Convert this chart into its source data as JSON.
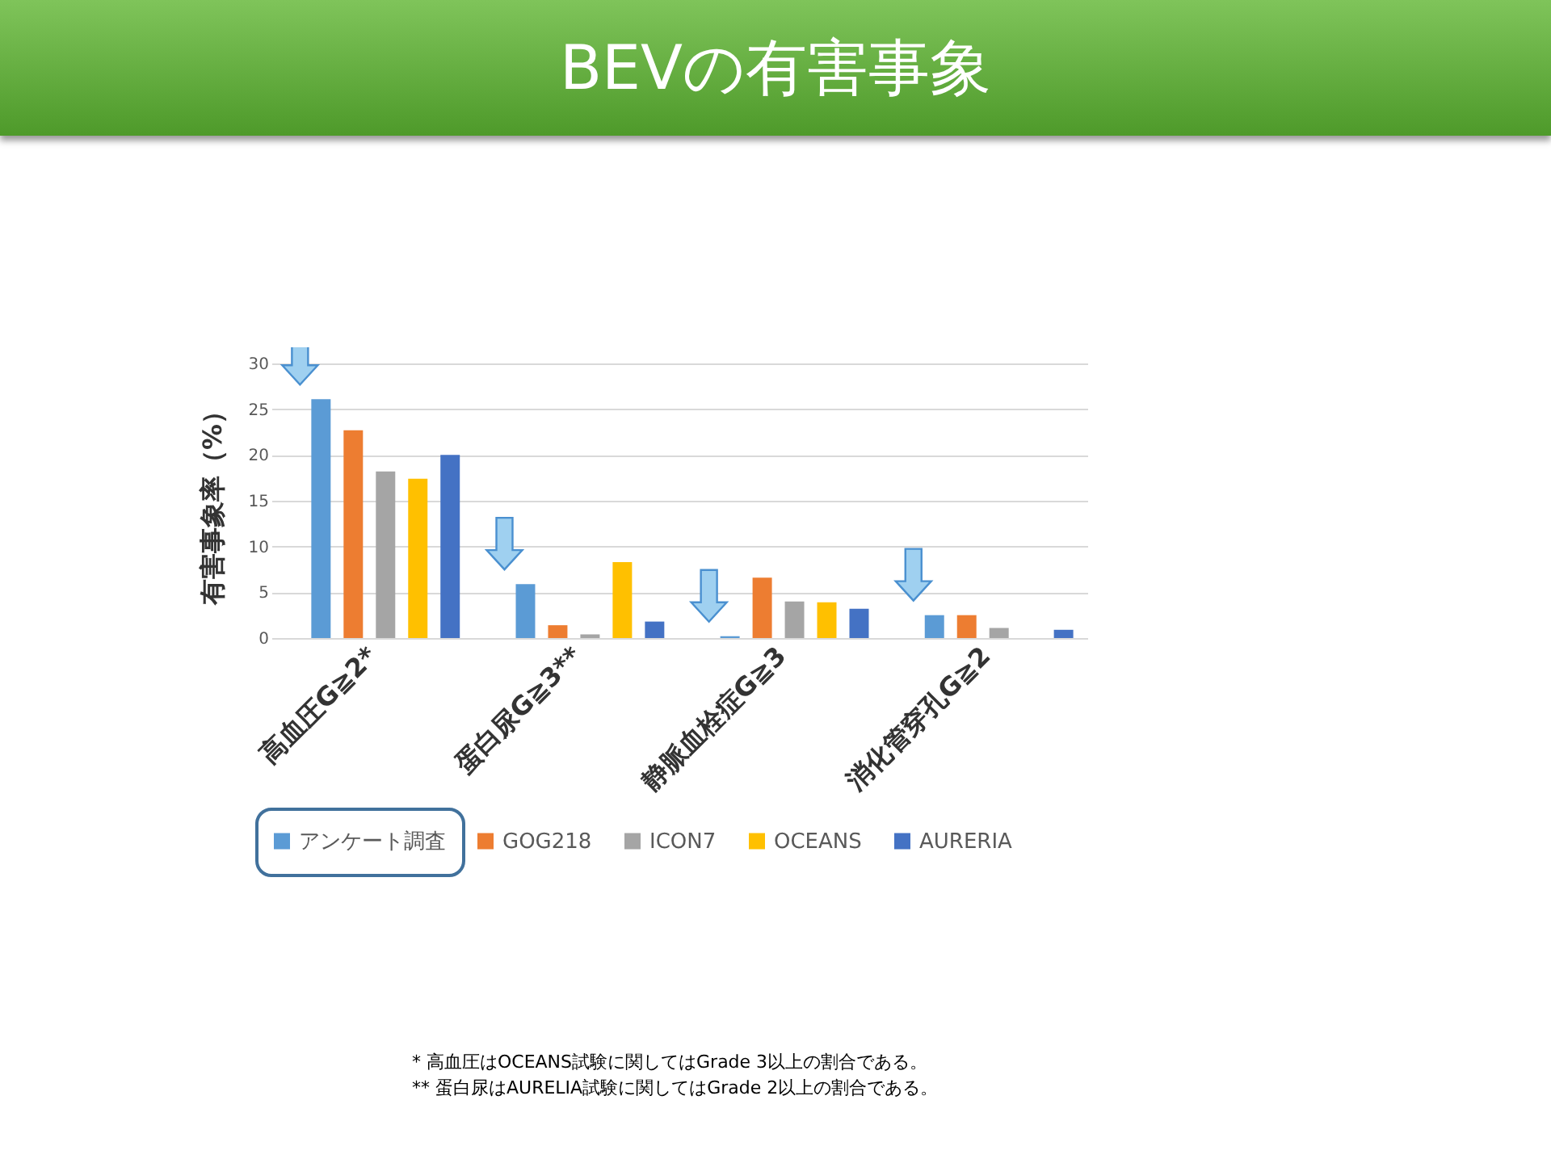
{
  "chart_data": {
    "type": "bar",
    "title": "BEVの有害事象",
    "ylabel": "有害事象率（%）",
    "categories": [
      "高血圧G≧2*",
      "蛋白尿G≧3**",
      "静脈血栓症G≧3",
      "消化管穿孔G≧2"
    ],
    "series": [
      {
        "name": "アンケート調査",
        "color": "#5b9bd5",
        "values": [
          26.1,
          5.9,
          0.2,
          2.5
        ]
      },
      {
        "name": "GOG218",
        "color": "#ed7d31",
        "values": [
          22.7,
          1.4,
          6.6,
          2.5
        ]
      },
      {
        "name": "ICON7",
        "color": "#a5a5a5",
        "values": [
          18.2,
          0.4,
          4.0,
          1.1
        ]
      },
      {
        "name": "OCEANS",
        "color": "#ffc000",
        "values": [
          17.4,
          8.3,
          3.9,
          null
        ]
      },
      {
        "name": "AURERIA",
        "color": "#4472c4",
        "values": [
          20.0,
          1.8,
          3.2,
          0.9
        ]
      }
    ],
    "ylim": [
      0,
      30
    ],
    "yticks": [
      0,
      5,
      10,
      15,
      20,
      25,
      30
    ],
    "grid": "y",
    "legend": "bottom",
    "annotations": [
      "*  高血圧はOCEANS試験に関してはGrade 3以上の割合である。",
      "**  蛋白尿はAURELIA試験に関してはGrade 2以上の割合である。"
    ]
  }
}
